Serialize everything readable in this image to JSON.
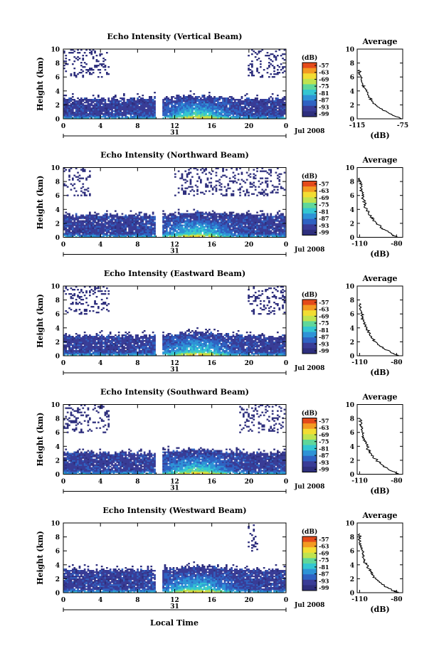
{
  "x_axis_label": "Local Time",
  "day_label": "31",
  "month_year_label": "Jul 2008",
  "colorbar_unit": "(dB)",
  "colormap": [
    "#2e2f7d",
    "#393c96",
    "#2f62c2",
    "#2e93d6",
    "#34c6d1",
    "#5fd79a",
    "#bfe34f",
    "#f2dd33",
    "#f39a22",
    "#e44a1a"
  ],
  "chart_data": [
    {
      "type": "heatmap",
      "title": "Echo Intensity (Vertical Beam)",
      "ylabel": "Height (km)",
      "x_ticks": [
        "0",
        "4",
        "8",
        "12",
        "16",
        "20",
        "0"
      ],
      "x_range_hours": [
        0,
        24
      ],
      "y_ticks": [
        "0",
        "2",
        "4",
        "6",
        "8",
        "10"
      ],
      "y_range_km": [
        0,
        10
      ],
      "data_gap_hours": [
        10.0,
        10.7
      ],
      "cloud_top_km": 2.9,
      "upper_layer_hours": [
        [
          0,
          5
        ],
        [
          20,
          24
        ]
      ],
      "colorbar_ticks": [
        "-57",
        "-63",
        "-69",
        "-75",
        "-81",
        "-87",
        "-93",
        "-99"
      ],
      "profile": {
        "title": "Average",
        "xlabel": "(dB)",
        "x_ticks": [
          "-115",
          "-75"
        ],
        "x_range": [
          -115,
          -75
        ],
        "height_km": [
          0,
          0.4,
          1,
          1.5,
          2,
          2.5,
          3,
          3.5,
          4,
          4.5,
          5,
          5.5,
          6,
          6.5,
          7
        ],
        "value_db": [
          -76,
          -82,
          -89,
          -95,
          -99,
          -102,
          -104,
          -106,
          -107,
          -109,
          -110,
          -111,
          -112,
          -113,
          -113
        ]
      }
    },
    {
      "type": "heatmap",
      "title": "Echo Intensity (Northward Beam)",
      "ylabel": "Height (km)",
      "x_ticks": [
        "0",
        "4",
        "8",
        "12",
        "16",
        "20",
        "0"
      ],
      "x_range_hours": [
        0,
        24
      ],
      "y_ticks": [
        "0",
        "2",
        "4",
        "6",
        "8",
        "10"
      ],
      "y_range_km": [
        0,
        10
      ],
      "data_gap_hours": [
        10.0,
        10.7
      ],
      "cloud_top_km": 3.2,
      "upper_layer_hours": [
        [
          0,
          3
        ],
        [
          12,
          24
        ]
      ],
      "colorbar_ticks": [
        "-57",
        "-63",
        "-69",
        "-75",
        "-81",
        "-87",
        "-93",
        "-99"
      ],
      "profile": {
        "title": "Average",
        "xlabel": "(dB)",
        "x_ticks": [
          "-110",
          "-80"
        ],
        "x_range": [
          -112,
          -75
        ],
        "height_km": [
          0,
          0.4,
          1,
          1.5,
          2,
          2.5,
          3,
          3.5,
          4,
          4.5,
          5,
          5.5,
          6,
          6.5,
          7,
          7.5,
          8,
          8.5
        ],
        "value_db": [
          -79,
          -84,
          -89,
          -93,
          -96,
          -99,
          -101,
          -103,
          -104,
          -106,
          -106,
          -107,
          -108,
          -108,
          -109,
          -109,
          -110,
          -110
        ]
      }
    },
    {
      "type": "heatmap",
      "title": "Echo Intensity (Eastward Beam)",
      "ylabel": "Height (km)",
      "x_ticks": [
        "0",
        "4",
        "8",
        "12",
        "16",
        "20",
        "0"
      ],
      "x_range_hours": [
        0,
        24
      ],
      "y_ticks": [
        "0",
        "2",
        "4",
        "6",
        "8",
        "10"
      ],
      "y_range_km": [
        0,
        10
      ],
      "data_gap_hours": [
        10.0,
        10.7
      ],
      "cloud_top_km": 2.9,
      "upper_layer_hours": [
        [
          0,
          5
        ],
        [
          20,
          24
        ]
      ],
      "colorbar_ticks": [
        "-57",
        "-63",
        "-69",
        "-75",
        "-81",
        "-87",
        "-93",
        "-99"
      ],
      "profile": {
        "title": "Average",
        "xlabel": "(dB)",
        "x_ticks": [
          "-110",
          "-80"
        ],
        "x_range": [
          -112,
          -75
        ],
        "height_km": [
          0,
          0.4,
          1,
          1.5,
          2,
          2.5,
          3,
          3.5,
          4,
          4.5,
          5,
          5.5,
          6,
          6.5,
          7,
          7.5
        ],
        "value_db": [
          -78,
          -84,
          -90,
          -94,
          -97,
          -100,
          -102,
          -103,
          -104,
          -106,
          -107,
          -108,
          -108,
          -109,
          -109,
          -110
        ]
      }
    },
    {
      "type": "heatmap",
      "title": "Echo Intensity (Southward Beam)",
      "ylabel": "Height (km)",
      "x_ticks": [
        "0",
        "4",
        "8",
        "12",
        "16",
        "20",
        "0"
      ],
      "x_range_hours": [
        0,
        24
      ],
      "y_ticks": [
        "0",
        "2",
        "4",
        "6",
        "8",
        "10"
      ],
      "y_range_km": [
        0,
        10
      ],
      "data_gap_hours": [
        10.0,
        10.7
      ],
      "cloud_top_km": 3.1,
      "upper_layer_hours": [
        [
          0,
          5
        ],
        [
          19,
          24
        ]
      ],
      "colorbar_ticks": [
        "-57",
        "-63",
        "-69",
        "-75",
        "-81",
        "-87",
        "-93",
        "-99"
      ],
      "profile": {
        "title": "Average",
        "xlabel": "(dB)",
        "x_ticks": [
          "-110",
          "-80"
        ],
        "x_range": [
          -112,
          -75
        ],
        "height_km": [
          0,
          0.4,
          1,
          1.5,
          2,
          2.5,
          3,
          3.5,
          4,
          4.5,
          5,
          5.5,
          6,
          6.5,
          7,
          7.5,
          8
        ],
        "value_db": [
          -78,
          -83,
          -89,
          -93,
          -96,
          -99,
          -101,
          -103,
          -104,
          -105,
          -106,
          -107,
          -108,
          -108,
          -109,
          -109,
          -110
        ]
      }
    },
    {
      "type": "heatmap",
      "title": "Echo Intensity (Westward Beam)",
      "ylabel": "Height (km)",
      "x_ticks": [
        "0",
        "4",
        "8",
        "12",
        "16",
        "20",
        "0"
      ],
      "x_range_hours": [
        0,
        24
      ],
      "y_ticks": [
        "0",
        "2",
        "4",
        "6",
        "8",
        "10"
      ],
      "y_range_km": [
        0,
        10
      ],
      "data_gap_hours": [
        10.0,
        10.7
      ],
      "cloud_top_km": 3.3,
      "upper_layer_hours": [
        [
          20,
          21
        ]
      ],
      "colorbar_ticks": [
        "-57",
        "-63",
        "-69",
        "-75",
        "-81",
        "-87",
        "-93",
        "-99"
      ],
      "profile": {
        "title": "Average",
        "xlabel": "(dB)",
        "x_ticks": [
          "-110",
          "-80"
        ],
        "x_range": [
          -112,
          -75
        ],
        "height_km": [
          0,
          0.4,
          1,
          1.5,
          2,
          2.5,
          3,
          3.5,
          4,
          4.5,
          5,
          5.5,
          6,
          6.5,
          7,
          7.5,
          8,
          8.5
        ],
        "value_db": [
          -78,
          -84,
          -90,
          -94,
          -97,
          -99,
          -101,
          -103,
          -104,
          -106,
          -107,
          -107,
          -108,
          -109,
          -109,
          -110,
          -110,
          -110
        ]
      }
    }
  ]
}
